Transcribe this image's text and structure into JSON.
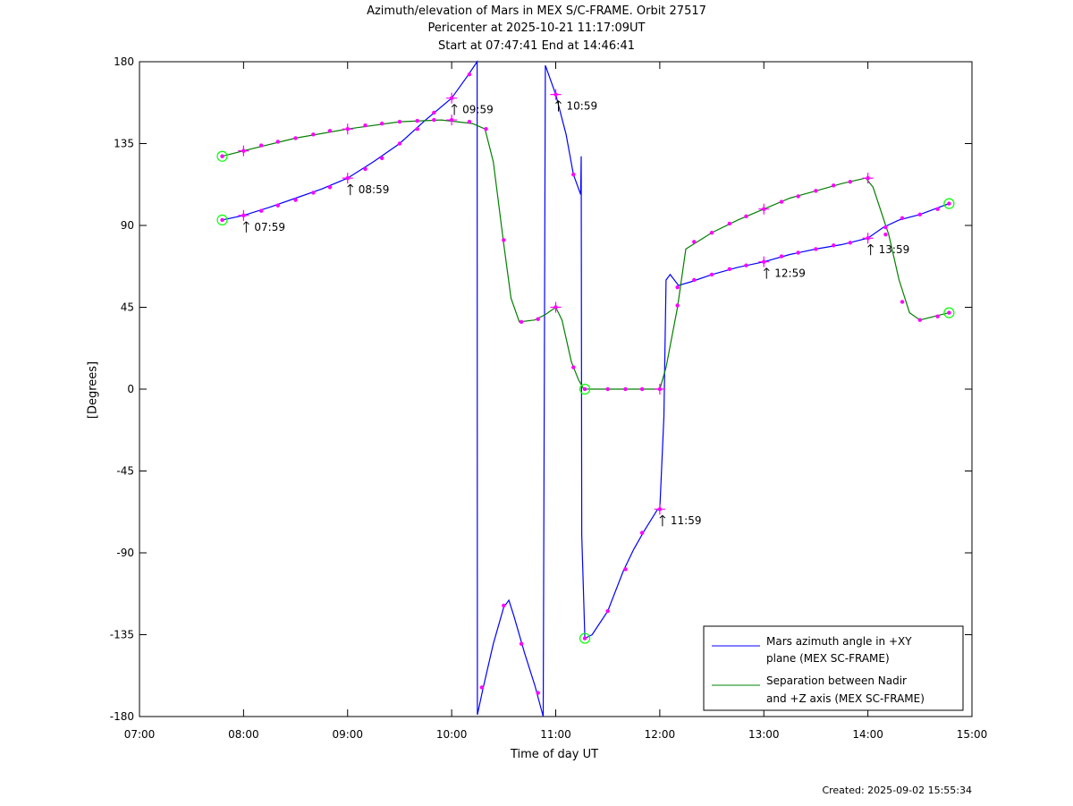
{
  "title_lines": [
    "Azimuth/elevation of Mars in MEX S/C-FRAME.  Orbit 27517",
    "Pericenter at 2025-10-21 11:17:09UT",
    "Start at 07:47:41 End at 14:46:41"
  ],
  "footer": {
    "created": "Created: 2025-09-02 15:55:34"
  },
  "colors": {
    "azimuth": "#0000ff",
    "separation": "#008000",
    "markers": "#ff00ff",
    "endpoints": "#00ff00"
  },
  "chart_data": {
    "type": "line",
    "xlabel": "Time of day UT",
    "ylabel": "[Degrees]",
    "x_unit": "hours of day UT",
    "xlim": [
      7,
      15
    ],
    "ylim": [
      -180,
      180
    ],
    "xticks": [
      7,
      8,
      9,
      10,
      11,
      12,
      13,
      14,
      15
    ],
    "xtick_labels": [
      "07:00",
      "08:00",
      "09:00",
      "10:00",
      "11:00",
      "12:00",
      "13:00",
      "14:00",
      "15:00"
    ],
    "yticks": [
      180,
      135,
      90,
      45,
      0,
      -45,
      -90,
      -135,
      -180
    ],
    "ytick_labels": [
      "180",
      "135",
      "90",
      "45",
      "0",
      "-45",
      "-90",
      "-135",
      "-180"
    ],
    "grid": false,
    "legend_position": "bottom-right",
    "series": [
      {
        "name": "Mars azimuth angle in +XY plane (MEX SC-FRAME)",
        "legend_lines": [
          "Mars azimuth angle in +XY",
          "plane (MEX SC-FRAME)"
        ],
        "color": "#0000ff",
        "points": [
          [
            7.795,
            93
          ],
          [
            8.0,
            95.5
          ],
          [
            8.25,
            100
          ],
          [
            8.5,
            105
          ],
          [
            8.75,
            110
          ],
          [
            9.0,
            116
          ],
          [
            9.25,
            125
          ],
          [
            9.5,
            135
          ],
          [
            9.75,
            148
          ],
          [
            10.0,
            160
          ],
          [
            10.15,
            172
          ],
          [
            10.245,
            180
          ],
          [
            10.247,
            -179
          ],
          [
            10.3,
            -165
          ],
          [
            10.4,
            -140
          ],
          [
            10.5,
            -120
          ],
          [
            10.55,
            -116
          ],
          [
            10.6,
            -125
          ],
          [
            10.7,
            -145
          ],
          [
            10.8,
            -163
          ],
          [
            10.88,
            -180
          ],
          [
            10.9,
            178
          ],
          [
            11.0,
            162
          ],
          [
            11.1,
            140
          ],
          [
            11.17,
            118
          ],
          [
            11.24,
            107
          ],
          [
            11.245,
            128
          ],
          [
            11.25,
            -80
          ],
          [
            11.28,
            -137
          ],
          [
            11.35,
            -135
          ],
          [
            11.5,
            -122
          ],
          [
            11.65,
            -100
          ],
          [
            11.75,
            -88
          ],
          [
            11.85,
            -78
          ],
          [
            11.98,
            -66
          ],
          [
            12.0,
            -66
          ],
          [
            12.04,
            -15
          ],
          [
            12.06,
            60
          ],
          [
            12.1,
            63
          ],
          [
            12.18,
            57
          ],
          [
            12.3,
            59
          ],
          [
            12.5,
            63
          ],
          [
            12.75,
            67
          ],
          [
            13.0,
            70
          ],
          [
            13.25,
            74
          ],
          [
            13.5,
            77
          ],
          [
            13.75,
            79.5
          ],
          [
            14.0,
            83
          ],
          [
            14.15,
            89
          ],
          [
            14.3,
            93
          ],
          [
            14.5,
            96
          ],
          [
            14.78,
            102
          ]
        ],
        "markers": [
          [
            7.795,
            93
          ],
          [
            8.0,
            95.5
          ],
          [
            8.17,
            98
          ],
          [
            8.33,
            101
          ],
          [
            8.5,
            104
          ],
          [
            8.67,
            108
          ],
          [
            8.83,
            111
          ],
          [
            9.0,
            116
          ],
          [
            9.17,
            121
          ],
          [
            9.33,
            127
          ],
          [
            9.5,
            135
          ],
          [
            9.67,
            143
          ],
          [
            9.83,
            152
          ],
          [
            10.0,
            160
          ],
          [
            10.17,
            173
          ],
          [
            10.29,
            -164
          ],
          [
            10.5,
            -119
          ],
          [
            10.67,
            -140
          ],
          [
            10.83,
            -167
          ],
          [
            11.0,
            162
          ],
          [
            11.17,
            118
          ],
          [
            11.28,
            -137
          ],
          [
            11.5,
            -122
          ],
          [
            11.67,
            -99
          ],
          [
            11.83,
            -79
          ],
          [
            12.0,
            -66
          ],
          [
            12.17,
            56
          ],
          [
            12.33,
            60
          ],
          [
            12.5,
            63
          ],
          [
            12.67,
            66
          ],
          [
            12.83,
            68
          ],
          [
            13.0,
            70
          ],
          [
            13.17,
            73
          ],
          [
            13.33,
            75
          ],
          [
            13.5,
            77
          ],
          [
            13.67,
            79
          ],
          [
            13.83,
            80.5
          ],
          [
            14.0,
            83
          ],
          [
            14.17,
            89
          ],
          [
            14.33,
            94
          ],
          [
            14.5,
            96
          ],
          [
            14.67,
            99
          ],
          [
            14.78,
            102
          ]
        ]
      },
      {
        "name": "Separation between Nadir and +Z axis (MEX SC-FRAME)",
        "legend_lines": [
          "Separation between Nadir",
          "and +Z axis (MEX SC-FRAME)"
        ],
        "color": "#008000",
        "points": [
          [
            7.795,
            128
          ],
          [
            8.0,
            131
          ],
          [
            8.5,
            138
          ],
          [
            9.0,
            143
          ],
          [
            9.5,
            147
          ],
          [
            9.9,
            148
          ],
          [
            10.2,
            146
          ],
          [
            10.32,
            143
          ],
          [
            10.4,
            125
          ],
          [
            10.5,
            80
          ],
          [
            10.57,
            50
          ],
          [
            10.65,
            37
          ],
          [
            10.8,
            38
          ],
          [
            10.9,
            41
          ],
          [
            11.0,
            45
          ],
          [
            11.06,
            38
          ],
          [
            11.15,
            15
          ],
          [
            11.22,
            5
          ],
          [
            11.27,
            0
          ],
          [
            12.0,
            0
          ],
          [
            12.06,
            12
          ],
          [
            12.17,
            45
          ],
          [
            12.25,
            77
          ],
          [
            12.5,
            86
          ],
          [
            12.75,
            93
          ],
          [
            13.0,
            99
          ],
          [
            13.25,
            105
          ],
          [
            13.5,
            109
          ],
          [
            13.75,
            113
          ],
          [
            13.98,
            116
          ],
          [
            14.05,
            111
          ],
          [
            14.2,
            85
          ],
          [
            14.3,
            60
          ],
          [
            14.4,
            42
          ],
          [
            14.5,
            38
          ],
          [
            14.78,
            42
          ]
        ],
        "markers": [
          [
            7.795,
            128
          ],
          [
            8.0,
            131
          ],
          [
            8.17,
            134
          ],
          [
            8.33,
            136
          ],
          [
            8.5,
            138
          ],
          [
            8.67,
            140
          ],
          [
            8.83,
            142
          ],
          [
            9.0,
            143
          ],
          [
            9.17,
            145
          ],
          [
            9.33,
            146
          ],
          [
            9.5,
            147
          ],
          [
            9.67,
            147.5
          ],
          [
            9.83,
            148
          ],
          [
            10.0,
            148
          ],
          [
            10.17,
            147
          ],
          [
            10.33,
            143
          ],
          [
            10.5,
            82
          ],
          [
            10.67,
            37
          ],
          [
            10.83,
            38.5
          ],
          [
            11.0,
            45
          ],
          [
            11.17,
            12
          ],
          [
            11.28,
            0
          ],
          [
            11.5,
            0
          ],
          [
            11.67,
            0
          ],
          [
            11.83,
            0
          ],
          [
            12.0,
            0
          ],
          [
            12.17,
            46
          ],
          [
            12.33,
            81
          ],
          [
            12.5,
            86
          ],
          [
            12.67,
            91
          ],
          [
            12.83,
            95
          ],
          [
            13.0,
            99
          ],
          [
            13.17,
            103
          ],
          [
            13.33,
            106
          ],
          [
            13.5,
            109
          ],
          [
            13.67,
            112
          ],
          [
            13.83,
            114
          ],
          [
            14.0,
            116
          ],
          [
            14.17,
            85
          ],
          [
            14.33,
            48
          ],
          [
            14.5,
            38
          ],
          [
            14.67,
            40
          ],
          [
            14.78,
            42
          ]
        ]
      }
    ],
    "endpoint_circles": [
      [
        7.795,
        93
      ],
      [
        7.795,
        128
      ],
      [
        11.28,
        -137
      ],
      [
        11.28,
        0
      ],
      [
        14.78,
        102
      ],
      [
        14.78,
        42
      ]
    ],
    "annotations": [
      {
        "text": "07:59",
        "x": 8.0,
        "y": 95.5
      },
      {
        "text": "08:59",
        "x": 9.0,
        "y": 116
      },
      {
        "text": "09:59",
        "x": 10.0,
        "y": 160
      },
      {
        "text": "10:59",
        "x": 11.0,
        "y": 162
      },
      {
        "text": "11:59",
        "x": 12.0,
        "y": -66
      },
      {
        "text": "12:59",
        "x": 13.0,
        "y": 70
      },
      {
        "text": "13:59",
        "x": 14.0,
        "y": 83
      }
    ],
    "cross_markers": [
      [
        8.0,
        95.5
      ],
      [
        9.0,
        116
      ],
      [
        10.0,
        160
      ],
      [
        11.0,
        162
      ],
      [
        12.0,
        -66
      ],
      [
        13.0,
        70
      ],
      [
        14.0,
        83
      ],
      [
        8.0,
        131
      ],
      [
        9.0,
        143
      ],
      [
        10.0,
        148
      ],
      [
        11.0,
        45
      ],
      [
        12.0,
        0
      ],
      [
        13.0,
        99
      ],
      [
        14.0,
        116
      ]
    ]
  }
}
